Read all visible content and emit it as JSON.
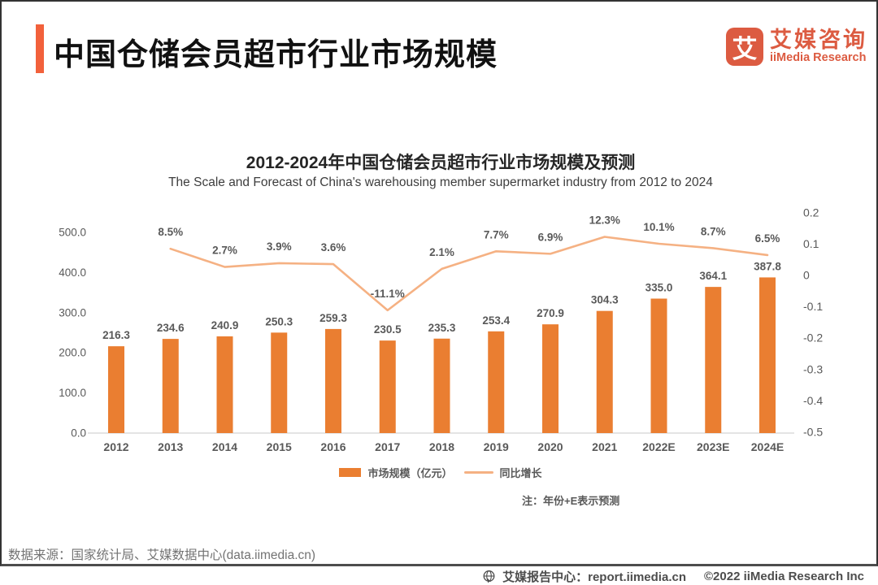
{
  "header": {
    "title": "中国仓储会员超市行业市场规模",
    "logo": {
      "glyph": "艾",
      "brand_cn": "艾媒咨询",
      "brand_en": "iiMedia Research"
    }
  },
  "chart": {
    "title": "2012-2024年中国仓储会员超市行业市场规模及预测",
    "subtitle": "The Scale and Forecast of China's warehousing member supermarket industry from 2012 to 2024",
    "note": "注：年份+E表示预测"
  },
  "chart_data": {
    "type": "bar+line",
    "title": "2012-2024年中国仓储会员超市行业市场规模及预测",
    "categories": [
      "2012",
      "2013",
      "2014",
      "2015",
      "2016",
      "2017",
      "2018",
      "2019",
      "2020",
      "2021",
      "2022E",
      "2023E",
      "2024E"
    ],
    "series": [
      {
        "name": "市场规模（亿元）",
        "type": "bar",
        "axis": "left",
        "color": "#EA7E31",
        "values": [
          216.3,
          234.6,
          240.9,
          250.3,
          259.3,
          230.5,
          235.3,
          253.4,
          270.9,
          304.3,
          335.0,
          364.1,
          387.8
        ],
        "labels": [
          "216.3",
          "234.6",
          "240.9",
          "250.3",
          "259.3",
          "230.5",
          "235.3",
          "253.4",
          "270.9",
          "304.3",
          "335.0",
          "364.1",
          "387.8"
        ]
      },
      {
        "name": "同比增长",
        "type": "line",
        "axis": "right",
        "color": "#F5B183",
        "values": [
          null,
          8.5,
          2.7,
          3.9,
          3.6,
          -11.1,
          2.1,
          7.7,
          6.9,
          12.3,
          10.1,
          8.7,
          6.5
        ],
        "labels": [
          null,
          "8.5%",
          "2.7%",
          "3.9%",
          "3.6%",
          "-11.1%",
          "2.1%",
          "7.7%",
          "6.9%",
          "12.3%",
          "10.1%",
          "8.7%",
          "6.5%"
        ]
      }
    ],
    "y_left_axis": {
      "tick_labels": [
        "0.0",
        "100.0",
        "200.0",
        "300.0",
        "400.0",
        "500.0"
      ],
      "tick_values": [
        0,
        100,
        200,
        300,
        400,
        500
      ],
      "range": [
        0,
        500
      ]
    },
    "y_right_axis": {
      "tick_labels": [
        "0.2",
        "0.1",
        "0",
        "-0.1",
        "-0.2",
        "-0.3",
        "-0.4",
        "-0.5"
      ],
      "tick_values": [
        0.2,
        0.1,
        0,
        -0.1,
        -0.2,
        -0.3,
        -0.4,
        -0.5
      ],
      "range": [
        -0.5,
        0.2
      ]
    },
    "grid": false,
    "legend_position": "bottom"
  },
  "footer": {
    "source": "数据来源：国家统计局、艾媒数据中心(data.iimedia.cn)",
    "report_center": "艾媒报告中心：report.iimedia.cn",
    "copyright": "©2022  iiMedia Research  Inc"
  },
  "colors": {
    "accent": "#F2613B",
    "brand": "#DC5B41",
    "bar": "#EA7E31",
    "line": "#F5B183",
    "label_gray": "#595959"
  }
}
